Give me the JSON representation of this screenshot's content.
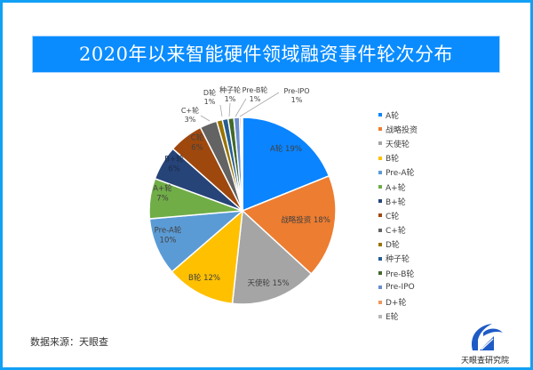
{
  "title": "2020年以来智能硬件领域融资事件轮次分布",
  "source": "数据来源：天眼查",
  "logo": {
    "text": "天眼查研究院",
    "icon": "tianyancha-logo-icon"
  },
  "colors": {
    "frame": "#12a0f5",
    "banner": "#0a8cff"
  },
  "chart_data": {
    "type": "pie",
    "title": "2020年以来智能硬件领域融资事件轮次分布",
    "categories": [
      "A轮",
      "战略投资",
      "天使轮",
      "B轮",
      "Pre-A轮",
      "A+轮",
      "B+轮",
      "C轮",
      "C+轮",
      "D轮",
      "种子轮",
      "Pre-B轮",
      "Pre-IPO",
      "D+轮",
      "E轮"
    ],
    "values": [
      19,
      18,
      15,
      12,
      10,
      7,
      6,
      6,
      3,
      1,
      1,
      1,
      1,
      0.3,
      0.2
    ],
    "labels": [
      "A轮 19%",
      "战略投资 18%",
      "天使轮 15%",
      "B轮 12%",
      "Pre-A轮 10%",
      "A+轮 7%",
      "B+轮 6%",
      "C轮 6%",
      "C+轮 3%",
      "D轮 1%",
      "种子轮 1%",
      "Pre-B轮 1%",
      "Pre-IPO 1%",
      "",
      ""
    ],
    "colors": [
      "#0a84ff",
      "#ed7d31",
      "#a5a5a5",
      "#ffc000",
      "#5b9bd5",
      "#70ad47",
      "#264478",
      "#9e480e",
      "#636363",
      "#997300",
      "#255e91",
      "#43682b",
      "#698ed0",
      "#f1975a",
      "#b7b7b7"
    ],
    "legend_position": "right",
    "start_angle": 0,
    "direction": "clockwise"
  },
  "legend": [
    {
      "label": "A轮",
      "color": "#0a84ff"
    },
    {
      "label": "战略投资",
      "color": "#ed7d31"
    },
    {
      "label": "天使轮",
      "color": "#a5a5a5"
    },
    {
      "label": "B轮",
      "color": "#ffc000"
    },
    {
      "label": "Pre-A轮",
      "color": "#5b9bd5"
    },
    {
      "label": "A+轮",
      "color": "#70ad47"
    },
    {
      "label": "B+轮",
      "color": "#264478"
    },
    {
      "label": "C轮",
      "color": "#9e480e"
    },
    {
      "label": "C+轮",
      "color": "#636363"
    },
    {
      "label": "D轮",
      "color": "#997300"
    },
    {
      "label": "种子轮",
      "color": "#255e91"
    },
    {
      "label": "Pre-B轮",
      "color": "#43682b"
    },
    {
      "label": "Pre-IPO",
      "color": "#698ed0"
    },
    {
      "label": "D+轮",
      "color": "#f1975a"
    },
    {
      "label": "E轮",
      "color": "#b7b7b7"
    }
  ]
}
